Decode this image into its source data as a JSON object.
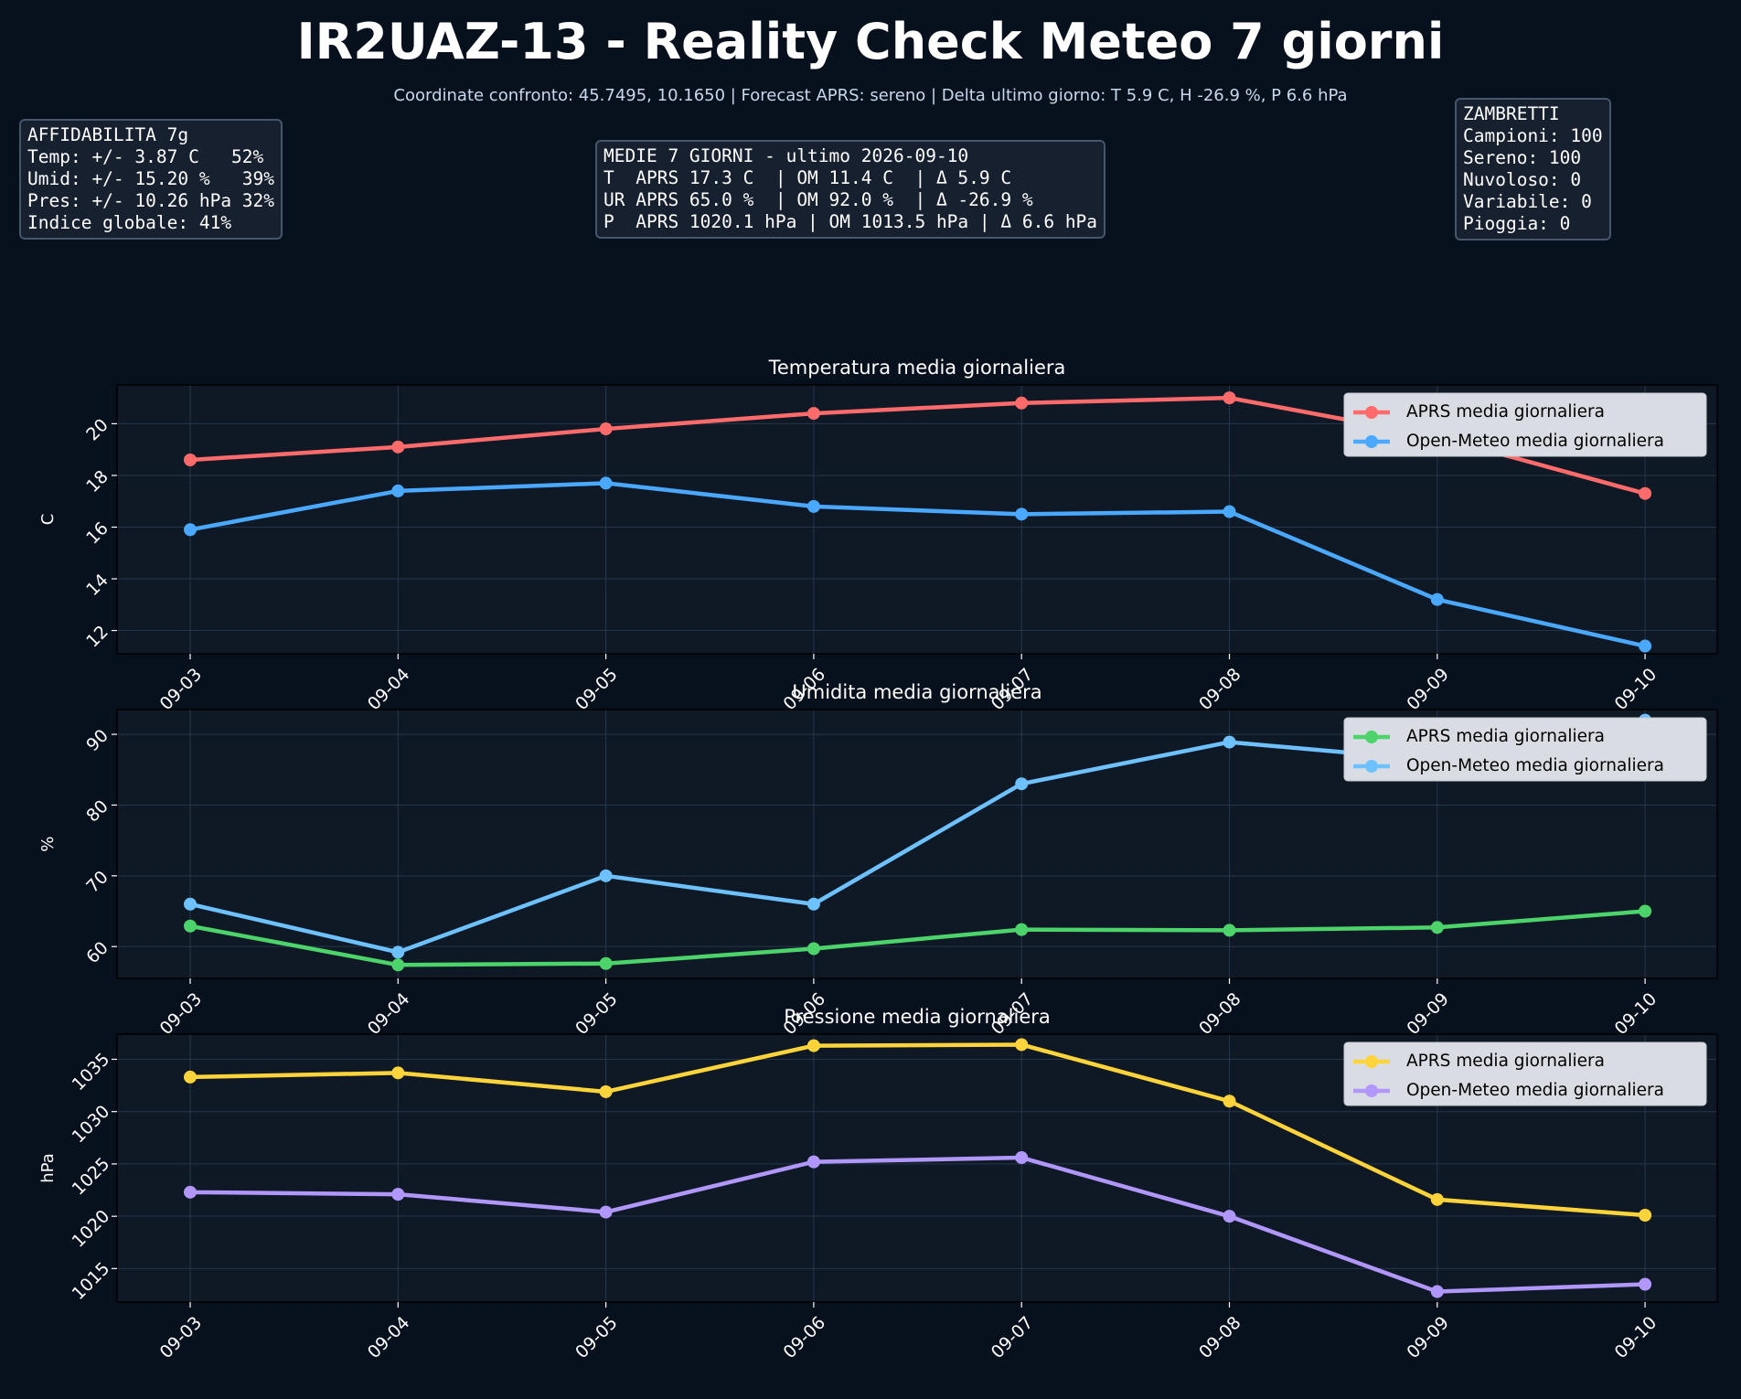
{
  "title": "IR2UAZ-13 - Reality Check Meteo 7 giorni",
  "subtitle": "Coordinate confronto: 45.7495, 10.1650 | Forecast APRS: sereno | Delta ultimo giorno: T 5.9 C, H -26.9 %, P 6.6 hPa",
  "boxes": {
    "affidabilita": [
      "AFFIDABILITA 7g",
      "Temp: +/- 3.87 C   52%",
      "Umid: +/- 15.20 %   39%",
      "Pres: +/- 10.26 hPa 32%",
      "Indice globale: 41%"
    ],
    "medie": [
      "MEDIE 7 GIORNI - ultimo 2026-09-10",
      "T  APRS 17.3 C  | OM 11.4 C  | Δ 5.9 C",
      "UR APRS 65.0 %  | OM 92.0 %  | Δ -26.9 %",
      "P  APRS 1020.1 hPa | OM 1013.5 hPa | Δ 6.6 hPa"
    ],
    "zambretti": [
      "ZAMBRETTI",
      "Campioni: 100",
      "Sereno: 100",
      "Nuvoloso: 0",
      "Variabile: 0",
      "Pioggia: 0"
    ]
  },
  "colors": {
    "background": "#07101d",
    "plot_background": "#0f1926",
    "grid": "#26364a",
    "temp_aprs": "#ff6b6b",
    "temp_om": "#4aa8ff",
    "hum_aprs": "#4cd36a",
    "hum_om": "#6ec1ff",
    "pres_aprs": "#ffd43b",
    "pres_om": "#b197fc"
  },
  "chart_data": [
    {
      "type": "line",
      "title": "Temperatura media giornaliera",
      "xlabel": "",
      "ylabel": "C",
      "categories": [
        "09-03",
        "09-04",
        "09-05",
        "09-06",
        "09-07",
        "09-08",
        "09-09",
        "09-10"
      ],
      "ylim": [
        11.1,
        21.5
      ],
      "yticks": [
        12,
        14,
        16,
        18,
        20
      ],
      "grid": true,
      "legend": "top-right",
      "series": [
        {
          "name": "APRS media giornaliera",
          "color": "#ff6b6b",
          "values": [
            18.6,
            19.1,
            19.8,
            20.4,
            20.8,
            21.0,
            19.5,
            17.3
          ]
        },
        {
          "name": "Open-Meteo media giornaliera",
          "color": "#4aa8ff",
          "values": [
            15.9,
            17.4,
            17.7,
            16.8,
            16.5,
            16.6,
            13.2,
            11.4
          ]
        }
      ]
    },
    {
      "type": "line",
      "title": "Umidita media giornaliera",
      "xlabel": "",
      "ylabel": "%",
      "categories": [
        "09-03",
        "09-04",
        "09-05",
        "09-06",
        "09-07",
        "09-08",
        "09-09",
        "09-10"
      ],
      "ylim": [
        55.5,
        93.5
      ],
      "yticks": [
        60,
        70,
        80,
        90
      ],
      "grid": true,
      "legend": "top-right",
      "series": [
        {
          "name": "APRS media giornaliera",
          "color": "#4cd36a",
          "values": [
            62.9,
            57.4,
            57.6,
            59.7,
            62.4,
            62.3,
            62.7,
            65.0
          ]
        },
        {
          "name": "Open-Meteo media giornaliera",
          "color": "#6ec1ff",
          "values": [
            66.0,
            59.2,
            70.0,
            66.0,
            83.0,
            88.9,
            86.3,
            92.0
          ]
        }
      ]
    },
    {
      "type": "line",
      "title": "Pressione media giornaliera",
      "xlabel": "",
      "ylabel": "hPa",
      "categories": [
        "09-03",
        "09-04",
        "09-05",
        "09-06",
        "09-07",
        "09-08",
        "09-09",
        "09-10"
      ],
      "ylim": [
        1011.8,
        1037.4
      ],
      "yticks": [
        1015,
        1020,
        1025,
        1030,
        1035
      ],
      "grid": true,
      "legend": "top-right",
      "series": [
        {
          "name": "APRS media giornaliera",
          "color": "#ffd43b",
          "values": [
            1033.3,
            1033.7,
            1031.9,
            1036.3,
            1036.4,
            1031.0,
            1021.6,
            1020.1
          ]
        },
        {
          "name": "Open-Meteo media giornaliera",
          "color": "#b197fc",
          "values": [
            1022.3,
            1022.1,
            1020.4,
            1025.2,
            1025.6,
            1020.0,
            1012.8,
            1013.5
          ]
        }
      ]
    }
  ]
}
